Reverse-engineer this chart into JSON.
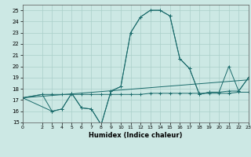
{
  "xlabel": "Humidex (Indice chaleur)",
  "bg_color": "#cce8e4",
  "grid_color": "#aacfc9",
  "line_color": "#1a6b6b",
  "xlim": [
    0,
    23
  ],
  "ylim": [
    15,
    25.5
  ],
  "xticks": [
    0,
    2,
    3,
    4,
    5,
    6,
    7,
    8,
    9,
    10,
    11,
    12,
    13,
    14,
    15,
    16,
    17,
    18,
    19,
    20,
    21,
    22,
    23
  ],
  "yticks": [
    15,
    16,
    17,
    18,
    19,
    20,
    21,
    22,
    23,
    24,
    25
  ],
  "line1_x": [
    0,
    2,
    3,
    4,
    5,
    6,
    7,
    8,
    9,
    10,
    11,
    12,
    13,
    14,
    15,
    16,
    17,
    18,
    19,
    20,
    21,
    22,
    23
  ],
  "line1_y": [
    17.2,
    17.5,
    17.5,
    17.5,
    17.5,
    17.5,
    17.5,
    17.5,
    17.5,
    17.5,
    17.5,
    17.5,
    17.6,
    17.6,
    17.6,
    17.6,
    17.6,
    17.6,
    17.6,
    17.6,
    17.6,
    17.7,
    17.7
  ],
  "line2_x": [
    0,
    3,
    4,
    5,
    6,
    7,
    8,
    9,
    10,
    11,
    12,
    13,
    14,
    15,
    16,
    17,
    18,
    19,
    20,
    21,
    22,
    23
  ],
  "line2_y": [
    17.2,
    16.0,
    16.2,
    17.6,
    16.3,
    16.2,
    14.8,
    17.8,
    18.2,
    23.0,
    24.4,
    25.0,
    25.0,
    24.5,
    20.7,
    19.8,
    17.5,
    17.7,
    17.7,
    20.0,
    17.8,
    19.0
  ],
  "line3_x": [
    0,
    2,
    3,
    4,
    5,
    6,
    7,
    8,
    9,
    10,
    11,
    12,
    13,
    14,
    15,
    16,
    17,
    18,
    19,
    20,
    21,
    22,
    23
  ],
  "line3_y": [
    17.2,
    17.5,
    16.0,
    16.2,
    17.6,
    16.3,
    16.2,
    14.8,
    17.8,
    18.2,
    23.0,
    24.4,
    25.0,
    25.0,
    24.5,
    20.7,
    19.8,
    17.5,
    17.7,
    17.7,
    17.8,
    17.8,
    19.0
  ],
  "line4_x": [
    0,
    23
  ],
  "line4_y": [
    17.2,
    18.8
  ]
}
